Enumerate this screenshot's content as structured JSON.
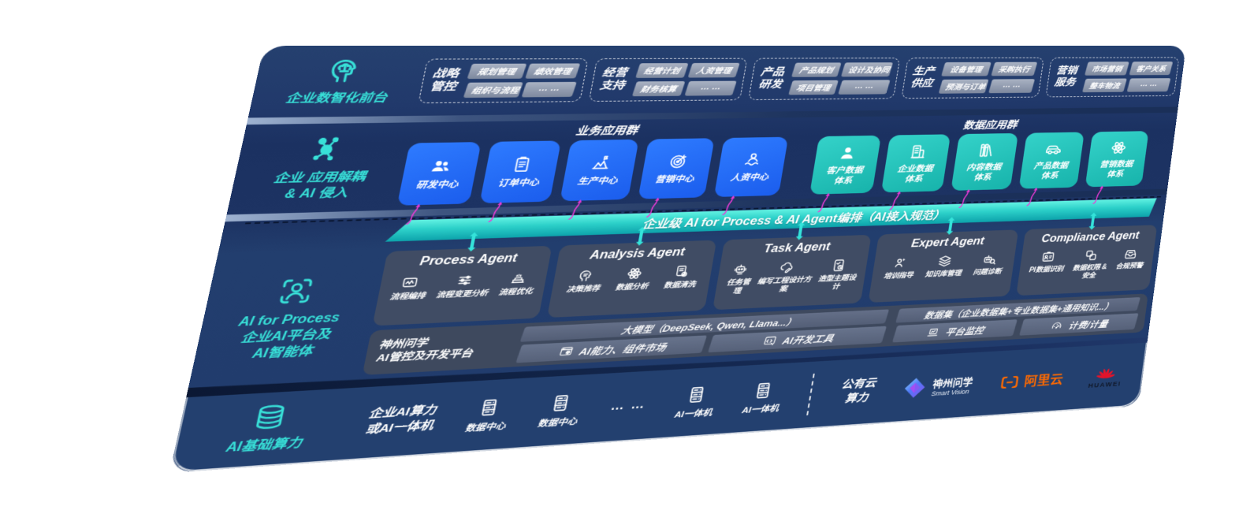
{
  "colors": {
    "panel_navy": "#20386a",
    "accent_teal": "#35e3da",
    "app_blue": "#1f66f0",
    "data_teal": "#25c7bf",
    "agent_grey": "#46536a",
    "band_teal_light": "#55efe0",
    "band_teal_dark": "#0da3ab",
    "arrow_magenta": "#ea3bd6",
    "aliyun_orange": "#ff6a00",
    "huawei_red": "#e4142b",
    "pill_grey": "#96a0b4"
  },
  "front": {
    "label": "企业数智化前台",
    "groups": [
      {
        "title": "战略管控",
        "pills": [
          "规划管理",
          "绩效管理",
          "组织与流程",
          "… …"
        ]
      },
      {
        "title": "经营支持",
        "pills": [
          "经营计划",
          "人资管理",
          "财务核算",
          "… …"
        ]
      },
      {
        "title": "产品研发",
        "pills": [
          "产品规划",
          "设计及协同",
          "项目管理",
          "… …"
        ]
      },
      {
        "title": "生产供应",
        "pills": [
          "设备管理",
          "采购执行",
          "预测与订单",
          "… …"
        ]
      },
      {
        "title": "营销服务",
        "pills": [
          "市场营销",
          "客户关系",
          "整车物流",
          "… …"
        ]
      }
    ]
  },
  "apps": {
    "label": "企业 应用解耦\n& AI 侵入",
    "business": {
      "header": "业务应用群",
      "items": [
        {
          "label": "研发中心"
        },
        {
          "label": "订单中心"
        },
        {
          "label": "生产中心"
        },
        {
          "label": "营销中心"
        },
        {
          "label": "人资中心"
        }
      ]
    },
    "data": {
      "header": "数据应用群",
      "items": [
        {
          "label": "客户数据\n体系"
        },
        {
          "label": "企业数据\n体系"
        },
        {
          "label": "内容数据\n体系"
        },
        {
          "label": "产品数据\n体系"
        },
        {
          "label": "营销数据\n体系"
        }
      ]
    }
  },
  "band": {
    "title": "企业级 AI for Process & AI Agent编排（AI接入规范）"
  },
  "process_layer": {
    "label": "AI for Process\n企业AI平台及\nAI智能体",
    "agents": [
      {
        "title": "Process Agent",
        "items": [
          {
            "label": "流程编排"
          },
          {
            "label": "流程变更分析"
          },
          {
            "label": "流程优化"
          }
        ]
      },
      {
        "title": "Analysis Agent",
        "items": [
          {
            "label": "决策推荐"
          },
          {
            "label": "数据分析"
          },
          {
            "label": "数据清洗"
          }
        ]
      },
      {
        "title": "Task Agent",
        "items": [
          {
            "label": "任务管理"
          },
          {
            "label": "编写工程设计方案"
          },
          {
            "label": "造型主题设计"
          }
        ]
      },
      {
        "title": "Expert Agent",
        "items": [
          {
            "label": "培训指导"
          },
          {
            "label": "知识库管理"
          },
          {
            "label": "问题诊断"
          }
        ]
      },
      {
        "title": "Compliance Agent",
        "items": [
          {
            "label": "PI数据识别"
          },
          {
            "label": "数据权限 &\n安全"
          },
          {
            "label": "合规预警"
          }
        ]
      }
    ],
    "platform": {
      "label": "神州问学\nAI管控及开发平台",
      "model_header": "大模型（DeepSeek, Qwen, Llama...）",
      "model_buttons": [
        {
          "label": "AI能力、组件市场"
        },
        {
          "label": "AI开发工具"
        }
      ],
      "dataset_header": "数据集（企业数据集+专业数据集+通用知识...）",
      "dataset_buttons": [
        {
          "label": "平台监控"
        },
        {
          "label": "计费/计量"
        }
      ]
    }
  },
  "compute": {
    "label": "AI基础算力",
    "enterprise": "企业AI算力\n或AI一体机",
    "servers": [
      "数据中心",
      "数据中心",
      "AI一体机",
      "AI一体机"
    ],
    "dots": "… …",
    "public_cloud": "公有云\n算力",
    "logos": {
      "smart_vision": {
        "name": "神州问学",
        "sub": "Smart Vision"
      },
      "aliyun": "阿里云",
      "huawei": "HUAWEI"
    }
  }
}
